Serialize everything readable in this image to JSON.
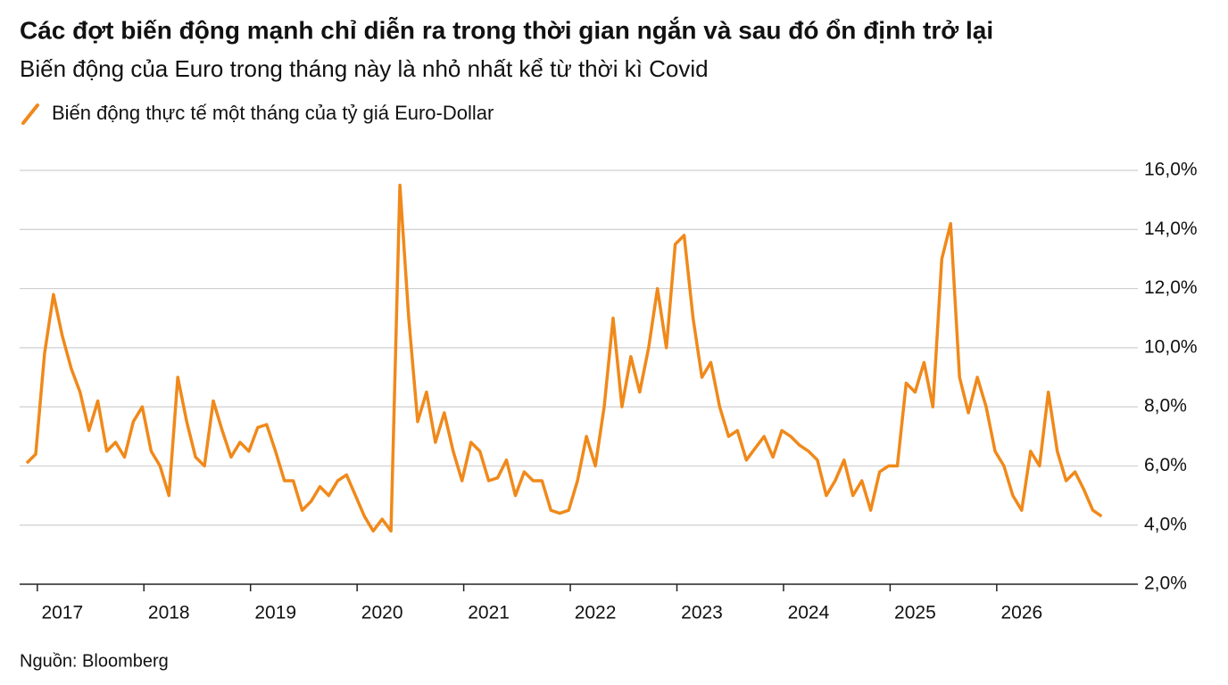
{
  "chart_data": {
    "type": "line",
    "title": "Các đợt biến động mạnh chỉ diễn ra trong thời gian ngắn và sau đó ổn định trở lại",
    "subtitle": "Biến động của Euro trong tháng này là nhỏ nhất kể từ thời kì Covid",
    "source": "Nguồn: Bloomberg",
    "categories": [
      null,
      null,
      null,
      null,
      "2017",
      null,
      null,
      null,
      null,
      null,
      null,
      null,
      null,
      null,
      null,
      null,
      "2018",
      null,
      null,
      null,
      null,
      null,
      null,
      null,
      null,
      null,
      null,
      null,
      "2019",
      null,
      null,
      null,
      null,
      null,
      null,
      null,
      null,
      null,
      null,
      null,
      "2020",
      null,
      null,
      null,
      null,
      null,
      null,
      null,
      null,
      null,
      null,
      null,
      "2021",
      null,
      null,
      null,
      null,
      null,
      null,
      null,
      null,
      null,
      null,
      null,
      "2022",
      null,
      null,
      null,
      null,
      null,
      null,
      null,
      null,
      null,
      null,
      null,
      "2023",
      null,
      null,
      null,
      null,
      null,
      null,
      null,
      null,
      null,
      null,
      null,
      "2024",
      null,
      null,
      null,
      null,
      null,
      null,
      null,
      null,
      null,
      null,
      null,
      "2025",
      null,
      null,
      null,
      null,
      null,
      null,
      null,
      null,
      null,
      null,
      null,
      "2026",
      null,
      null,
      null,
      null,
      null,
      null,
      null,
      null,
      null
    ],
    "series": [
      {
        "name": "Biến động thực tế một tháng của tỷ giá Euro-Dollar",
        "color": "#f0891a",
        "values": [
          6.1,
          6.4,
          9.8,
          11.8,
          10.4,
          9.3,
          8.5,
          7.2,
          8.2,
          6.5,
          6.8,
          6.3,
          7.5,
          8.0,
          6.5,
          6.0,
          5.0,
          9.0,
          7.5,
          6.3,
          6.0,
          8.2,
          7.2,
          6.3,
          6.8,
          6.5,
          7.3,
          7.4,
          6.5,
          5.5,
          5.5,
          4.5,
          4.8,
          5.3,
          5.0,
          5.5,
          5.7,
          5.0,
          4.3,
          3.8,
          4.2,
          3.8,
          15.5,
          11.0,
          7.5,
          8.5,
          6.8,
          7.8,
          6.5,
          5.5,
          6.8,
          6.5,
          5.5,
          5.6,
          6.2,
          5.0,
          5.8,
          5.5,
          5.5,
          4.5,
          4.4,
          4.5,
          5.5,
          7.0,
          6.0,
          8.0,
          11.0,
          8.0,
          9.7,
          8.5,
          10.0,
          12.0,
          10.0,
          13.5,
          13.8,
          11.0,
          9.0,
          9.5,
          8.0,
          7.0,
          7.2,
          6.2,
          6.6,
          7.0,
          6.3,
          7.2,
          7.0,
          6.7,
          6.5,
          6.2,
          5.0,
          5.5,
          6.2,
          5.0,
          5.5,
          4.5,
          5.8,
          6.0,
          6.0,
          8.8,
          8.5,
          9.5,
          8.0,
          13.0,
          14.2,
          9.0,
          7.8,
          9.0,
          8.0,
          6.5,
          6.0,
          5.0,
          4.5,
          6.5,
          6.0,
          8.5,
          6.5,
          5.5,
          5.8,
          5.2,
          4.5,
          4.3
        ]
      }
    ],
    "ylim": [
      2,
      16
    ],
    "yticks": [
      {
        "value": 2,
        "label": "2,0%"
      },
      {
        "value": 4,
        "label": "4,0%"
      },
      {
        "value": 6,
        "label": "6,0%"
      },
      {
        "value": 8,
        "label": "8,0%"
      },
      {
        "value": 10,
        "label": "10,0%"
      },
      {
        "value": 12,
        "label": "12,0%"
      },
      {
        "value": 14,
        "label": "14,0%"
      },
      {
        "value": 16,
        "label": "16,0%"
      }
    ],
    "grid": true
  }
}
